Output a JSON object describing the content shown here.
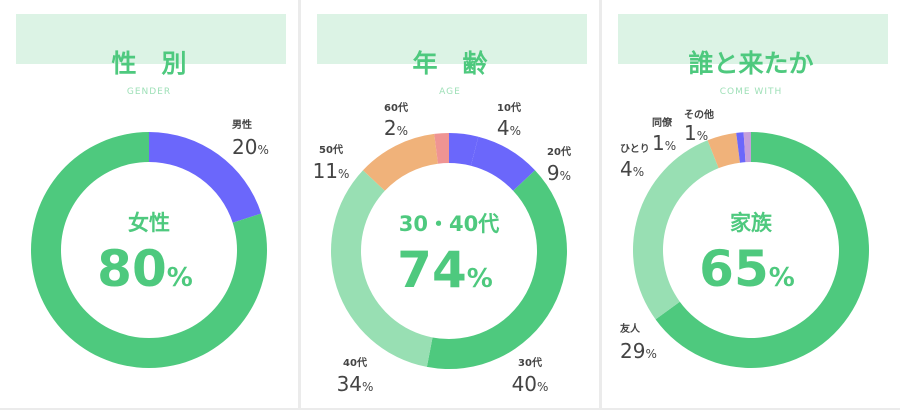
{
  "colors": {
    "main_green": "#4ec97e",
    "light_green": "#98dfb3",
    "header_bg": "#dcf3e5",
    "blue": "#6b67fb",
    "orange": "#f0b27a",
    "pink": "#ef9493",
    "lavender": "#c59fdb",
    "label_text": "#444444",
    "subtitle": "#9fe0b8"
  },
  "chart_data": [
    {
      "type": "pie",
      "title": "性　別",
      "subtitle": "GENDER",
      "center": {
        "label": "女性",
        "value": "80",
        "unit": "%"
      },
      "slices": [
        {
          "name": "男性",
          "value": 20,
          "color": "#6b67fb",
          "show_label": true
        },
        {
          "name": "女性",
          "value": 80,
          "color": "#4ec97e",
          "show_label": false
        }
      ]
    },
    {
      "type": "pie",
      "title": "年　齢",
      "subtitle": "AGE",
      "center": {
        "label": "30・40代",
        "value": "74",
        "unit": "%"
      },
      "slices": [
        {
          "name": "10代",
          "value": 4,
          "color": "#6b67fb",
          "show_label": true
        },
        {
          "name": "20代",
          "value": 9,
          "color": "#6b67fb",
          "show_label": true
        },
        {
          "name": "30代",
          "value": 40,
          "color": "#4ec97e",
          "show_label": true
        },
        {
          "name": "40代",
          "value": 34,
          "color": "#98dfb3",
          "show_label": true
        },
        {
          "name": "50代",
          "value": 11,
          "color": "#f0b27a",
          "show_label": true
        },
        {
          "name": "60代",
          "value": 2,
          "color": "#ef9493",
          "show_label": true
        }
      ]
    },
    {
      "type": "pie",
      "title": "誰と来たか",
      "subtitle": "COME WITH",
      "center": {
        "label": "家族",
        "value": "65",
        "unit": "%"
      },
      "slices": [
        {
          "name": "家族",
          "value": 65,
          "color": "#4ec97e",
          "show_label": false
        },
        {
          "name": "友人",
          "value": 29,
          "color": "#98dfb3",
          "show_label": true
        },
        {
          "name": "ひとり",
          "value": 4,
          "color": "#f0b27a",
          "show_label": true
        },
        {
          "name": "同僚",
          "value": 1,
          "color": "#6b67fb",
          "show_label": true
        },
        {
          "name": "その他",
          "value": 1,
          "color": "#c59fdb",
          "show_label": true
        }
      ]
    }
  ]
}
